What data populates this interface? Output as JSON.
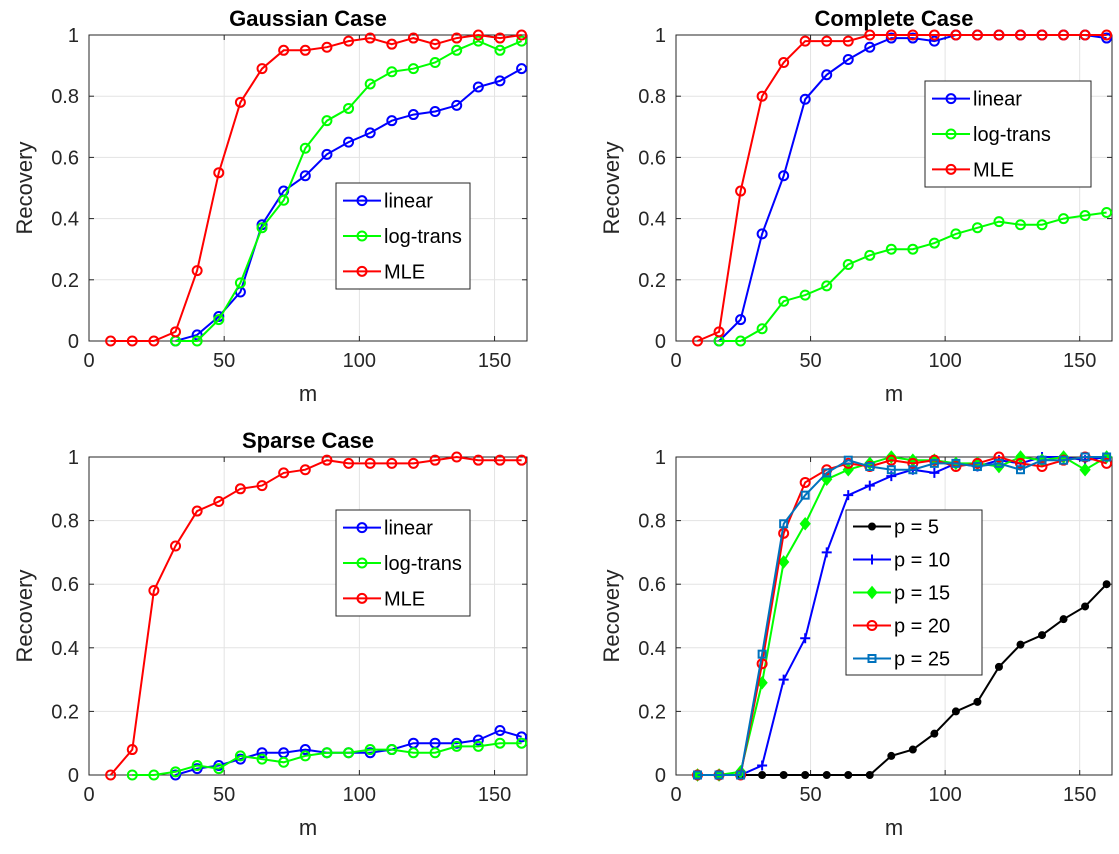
{
  "colors": {
    "linear": "#0000ff",
    "log-trans": "#00ff00",
    "MLE": "#ff0000",
    "p5": "#000000",
    "p10": "#0000ff",
    "p15": "#00ff00",
    "p20": "#ff0000",
    "p25": "#0072bd"
  },
  "chart_data": [
    {
      "type": "line",
      "title": "Gaussian Case",
      "xlabel": "m",
      "ylabel": "Recovery",
      "xlim": [
        0,
        162
      ],
      "ylim": [
        0,
        1
      ],
      "xticks": [
        0,
        50,
        100,
        150
      ],
      "yticks": [
        0,
        0.2,
        0.4,
        0.6,
        0.8,
        1
      ],
      "xtick_labels": [
        "0",
        "50",
        "100",
        "150"
      ],
      "ytick_labels": [
        "0",
        "0.2",
        "0.4",
        "0.6",
        "0.8",
        "1"
      ],
      "grid": true,
      "legend": "center-right",
      "series": [
        {
          "name": "linear",
          "color": "#0000ff",
          "marker": "circle",
          "x": [
            32,
            40,
            48,
            56,
            64,
            72,
            80,
            88,
            96,
            104,
            112,
            120,
            128,
            136,
            144,
            152,
            160
          ],
          "y": [
            0,
            0.02,
            0.08,
            0.16,
            0.38,
            0.49,
            0.54,
            0.61,
            0.65,
            0.68,
            0.72,
            0.74,
            0.75,
            0.77,
            0.83,
            0.85,
            0.89
          ]
        },
        {
          "name": "log-trans",
          "color": "#00ff00",
          "marker": "circle",
          "x": [
            32,
            40,
            48,
            56,
            64,
            72,
            80,
            88,
            96,
            104,
            112,
            120,
            128,
            136,
            144,
            152,
            160
          ],
          "y": [
            0,
            0,
            0.07,
            0.19,
            0.37,
            0.46,
            0.63,
            0.72,
            0.76,
            0.84,
            0.88,
            0.89,
            0.91,
            0.95,
            0.98,
            0.95,
            0.98
          ]
        },
        {
          "name": "MLE",
          "color": "#ff0000",
          "marker": "circle",
          "x": [
            8,
            16,
            24,
            32,
            40,
            48,
            56,
            64,
            72,
            80,
            88,
            96,
            104,
            112,
            120,
            128,
            136,
            144,
            152,
            160
          ],
          "y": [
            0,
            0,
            0,
            0.03,
            0.23,
            0.55,
            0.78,
            0.89,
            0.95,
            0.95,
            0.96,
            0.98,
            0.99,
            0.97,
            0.99,
            0.97,
            0.99,
            1,
            0.99,
            1
          ]
        }
      ]
    },
    {
      "type": "line",
      "title": "Complete Case",
      "xlabel": "m",
      "ylabel": "Recovery",
      "xlim": [
        0,
        162
      ],
      "ylim": [
        0,
        1
      ],
      "xticks": [
        0,
        50,
        100,
        150
      ],
      "yticks": [
        0,
        0.2,
        0.4,
        0.6,
        0.8,
        1
      ],
      "xtick_labels": [
        "0",
        "50",
        "100",
        "150"
      ],
      "ytick_labels": [
        "0",
        "0.2",
        "0.4",
        "0.6",
        "0.8",
        "1"
      ],
      "grid": true,
      "legend": "upper-right",
      "series": [
        {
          "name": "linear",
          "color": "#0000ff",
          "marker": "circle",
          "x": [
            16,
            24,
            32,
            40,
            48,
            56,
            64,
            72,
            80,
            88,
            96,
            104,
            112,
            120,
            128,
            136,
            144,
            152,
            160
          ],
          "y": [
            0,
            0.07,
            0.35,
            0.54,
            0.79,
            0.87,
            0.92,
            0.96,
            0.99,
            0.99,
            0.98,
            1,
            1,
            1,
            1,
            1,
            1,
            1,
            0.99
          ]
        },
        {
          "name": "log-trans",
          "color": "#00ff00",
          "marker": "circle",
          "x": [
            16,
            24,
            32,
            40,
            48,
            56,
            64,
            72,
            80,
            88,
            96,
            104,
            112,
            120,
            128,
            136,
            144,
            152,
            160
          ],
          "y": [
            0,
            0,
            0.04,
            0.13,
            0.15,
            0.18,
            0.25,
            0.28,
            0.3,
            0.3,
            0.32,
            0.35,
            0.37,
            0.39,
            0.38,
            0.38,
            0.4,
            0.41,
            0.42
          ]
        },
        {
          "name": "MLE",
          "color": "#ff0000",
          "marker": "circle",
          "x": [
            8,
            16,
            24,
            32,
            40,
            48,
            56,
            64,
            72,
            80,
            88,
            96,
            104,
            112,
            120,
            128,
            136,
            144,
            152,
            160
          ],
          "y": [
            0,
            0.03,
            0.49,
            0.8,
            0.91,
            0.98,
            0.98,
            0.98,
            1,
            1,
            1,
            1,
            1,
            1,
            1,
            1,
            1,
            1,
            1,
            1
          ]
        }
      ]
    },
    {
      "type": "line",
      "title": "Sparse Case",
      "xlabel": "m",
      "ylabel": "Recovery",
      "xlim": [
        0,
        162
      ],
      "ylim": [
        0,
        1
      ],
      "xticks": [
        0,
        50,
        100,
        150
      ],
      "yticks": [
        0,
        0.2,
        0.4,
        0.6,
        0.8,
        1
      ],
      "xtick_labels": [
        "0",
        "50",
        "100",
        "150"
      ],
      "ytick_labels": [
        "0",
        "0.2",
        "0.4",
        "0.6",
        "0.8",
        "1"
      ],
      "grid": true,
      "legend": "center-right",
      "series": [
        {
          "name": "linear",
          "color": "#0000ff",
          "marker": "circle",
          "x": [
            32,
            40,
            48,
            56,
            64,
            72,
            80,
            88,
            96,
            104,
            112,
            120,
            128,
            136,
            144,
            152,
            160
          ],
          "y": [
            0,
            0.02,
            0.03,
            0.05,
            0.07,
            0.07,
            0.08,
            0.07,
            0.07,
            0.07,
            0.08,
            0.1,
            0.1,
            0.1,
            0.11,
            0.14,
            0.12
          ]
        },
        {
          "name": "log-trans",
          "color": "#00ff00",
          "marker": "circle",
          "x": [
            16,
            24,
            32,
            40,
            48,
            56,
            64,
            72,
            80,
            88,
            96,
            104,
            112,
            120,
            128,
            136,
            144,
            152,
            160
          ],
          "y": [
            0,
            0,
            0.01,
            0.03,
            0.02,
            0.06,
            0.05,
            0.04,
            0.06,
            0.07,
            0.07,
            0.08,
            0.08,
            0.07,
            0.07,
            0.09,
            0.09,
            0.1,
            0.1
          ]
        },
        {
          "name": "MLE",
          "color": "#ff0000",
          "marker": "circle",
          "x": [
            8,
            16,
            24,
            32,
            40,
            48,
            56,
            64,
            72,
            80,
            88,
            96,
            104,
            112,
            120,
            128,
            136,
            144,
            152,
            160
          ],
          "y": [
            0,
            0.08,
            0.58,
            0.72,
            0.83,
            0.86,
            0.9,
            0.91,
            0.95,
            0.96,
            0.99,
            0.98,
            0.98,
            0.98,
            0.98,
            0.99,
            1,
            0.99,
            0.99,
            0.99
          ]
        }
      ]
    },
    {
      "type": "line",
      "title": "",
      "xlabel": "m",
      "ylabel": "Recovery",
      "xlim": [
        0,
        162
      ],
      "ylim": [
        0,
        1
      ],
      "xticks": [
        0,
        50,
        100,
        150
      ],
      "yticks": [
        0,
        0.2,
        0.4,
        0.6,
        0.8,
        1
      ],
      "xtick_labels": [
        "0",
        "50",
        "100",
        "150"
      ],
      "ytick_labels": [
        "0",
        "0.2",
        "0.4",
        "0.6",
        "0.8",
        "1"
      ],
      "grid": true,
      "legend": "center-right",
      "series": [
        {
          "name": "p = 5",
          "color": "#000000",
          "marker": "dot",
          "x": [
            8,
            16,
            24,
            32,
            40,
            48,
            56,
            64,
            72,
            80,
            88,
            96,
            104,
            112,
            120,
            128,
            136,
            144,
            152,
            160
          ],
          "y": [
            0,
            0,
            0,
            0,
            0,
            0,
            0,
            0,
            0,
            0.06,
            0.08,
            0.13,
            0.2,
            0.23,
            0.34,
            0.41,
            0.44,
            0.49,
            0.53,
            0.6
          ]
        },
        {
          "name": "p = 10",
          "color": "#0000ff",
          "marker": "plus",
          "x": [
            8,
            16,
            24,
            32,
            40,
            48,
            56,
            64,
            72,
            80,
            88,
            96,
            104,
            112,
            120,
            128,
            136,
            144,
            152,
            160
          ],
          "y": [
            0,
            0,
            0,
            0.03,
            0.3,
            0.43,
            0.7,
            0.88,
            0.91,
            0.94,
            0.96,
            0.95,
            0.98,
            0.97,
            0.99,
            0.98,
            1,
            1,
            0.99,
            1
          ]
        },
        {
          "name": "p = 15",
          "color": "#00ff00",
          "marker": "diamond",
          "x": [
            8,
            16,
            24,
            32,
            40,
            48,
            56,
            64,
            72,
            80,
            88,
            96,
            104,
            112,
            120,
            128,
            136,
            144,
            152,
            160
          ],
          "y": [
            0,
            0,
            0.01,
            0.29,
            0.67,
            0.79,
            0.93,
            0.96,
            0.98,
            1,
            0.99,
            0.99,
            0.98,
            0.98,
            0.97,
            1,
            0.99,
            1,
            0.96,
            1
          ]
        },
        {
          "name": "p = 20",
          "color": "#ff0000",
          "marker": "circle",
          "x": [
            8,
            16,
            24,
            32,
            40,
            48,
            56,
            64,
            72,
            80,
            88,
            96,
            104,
            112,
            120,
            128,
            136,
            144,
            152,
            160
          ],
          "y": [
            0,
            0,
            0,
            0.35,
            0.76,
            0.92,
            0.96,
            0.98,
            0.97,
            0.99,
            0.98,
            0.99,
            0.97,
            0.98,
            1,
            0.98,
            0.97,
            0.99,
            1,
            0.98
          ]
        },
        {
          "name": "p = 25",
          "color": "#0072bd",
          "marker": "square",
          "x": [
            8,
            16,
            24,
            32,
            40,
            48,
            56,
            64,
            72,
            80,
            88,
            96,
            104,
            112,
            120,
            128,
            136,
            144,
            152,
            160
          ],
          "y": [
            0,
            0,
            0,
            0.38,
            0.79,
            0.88,
            0.95,
            0.99,
            0.97,
            0.96,
            0.96,
            0.98,
            0.98,
            0.97,
            0.98,
            0.96,
            0.99,
            0.99,
            1,
            1
          ]
        }
      ]
    }
  ]
}
